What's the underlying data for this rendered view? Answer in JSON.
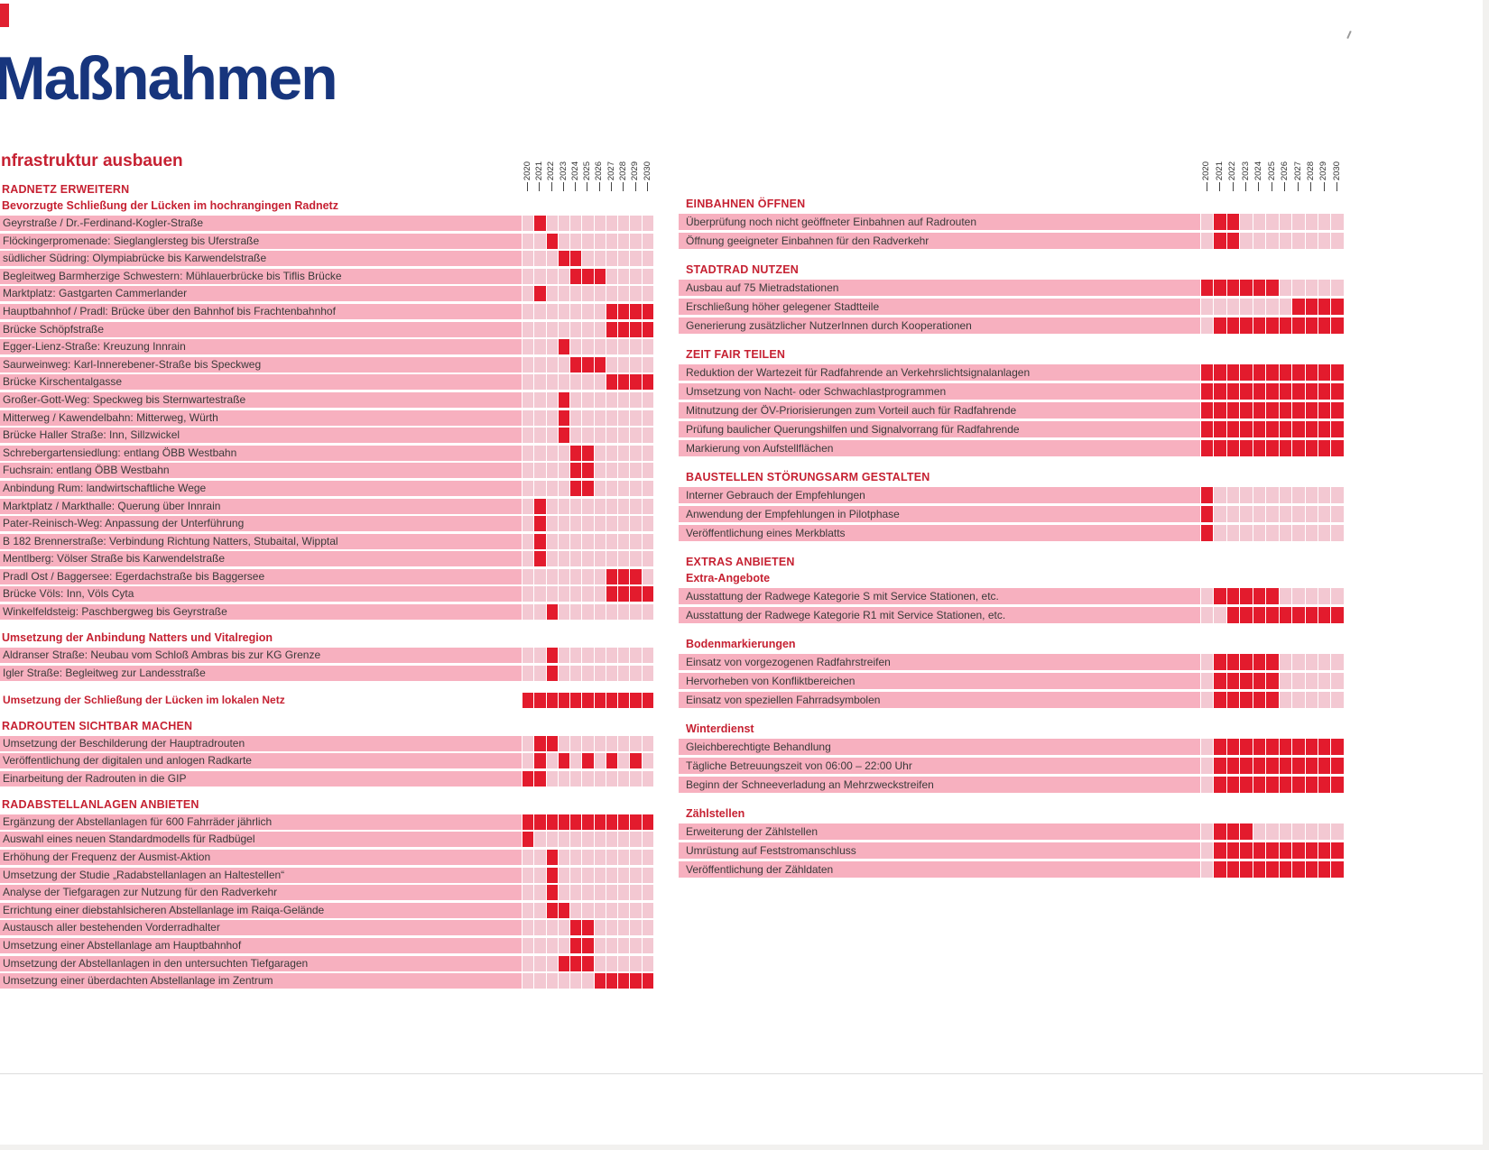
{
  "page": {
    "title": "Maßnahmen",
    "subtitle": "nfrastruktur ausbauen"
  },
  "years": [
    "2020",
    "2021",
    "2022",
    "2023",
    "2024",
    "2025",
    "2026",
    "2027",
    "2028",
    "2029",
    "2030"
  ],
  "colors": {
    "title_blue": "#17357d",
    "header_red": "#c62132",
    "cell_on": "#e31b2d",
    "cell_off": "#f3c8d2",
    "label_bar_pink": "#f7b0bf"
  },
  "left": {
    "sections": [
      {
        "caps": "RADNETZ ERWEITERN",
        "sub": "Bevorzugte Schließung der Lücken im hochrangingen Radnetz",
        "rows": [
          {
            "label": "Geyrstraße / Dr.-Ferdinand-Kogler-Straße",
            "filled": [
              "2021"
            ]
          },
          {
            "label": "Flöckingerpromenade: Sieglanglersteg bis Uferstraße",
            "filled": [
              "2022"
            ]
          },
          {
            "label": "südlicher Südring: Olympiabrücke bis Karwendelstraße",
            "filled": [
              "2023",
              "2024"
            ]
          },
          {
            "label": "Begleitweg Barmherzige Schwestern: Mühlauerbrücke bis Tiflis Brücke",
            "filled": [
              "2024",
              "2025",
              "2026"
            ]
          },
          {
            "label": "Marktplatz: Gastgarten Cammerlander",
            "filled": [
              "2021"
            ]
          },
          {
            "label": "Hauptbahnhof / Pradl: Brücke über den Bahnhof bis Frachtenbahnhof",
            "filled": [
              "2027",
              "2028",
              "2029",
              "2030"
            ]
          },
          {
            "label": "Brücke Schöpfstraße",
            "filled": [
              "2027",
              "2028",
              "2029",
              "2030"
            ]
          },
          {
            "label": "Egger-Lienz-Straße: Kreuzung Innrain",
            "filled": [
              "2023"
            ]
          },
          {
            "label": "Saurweinweg: Karl-Innerebener-Straße bis Speckweg",
            "filled": [
              "2024",
              "2025",
              "2026"
            ]
          },
          {
            "label": "Brücke Kirschentalgasse",
            "filled": [
              "2027",
              "2028",
              "2029",
              "2030"
            ]
          },
          {
            "label": "Großer-Gott-Weg: Speckweg bis Sternwartestraße",
            "filled": [
              "2023"
            ]
          },
          {
            "label": "Mitterweg / Kawendelbahn: Mitterweg, Würth",
            "filled": [
              "2023"
            ]
          },
          {
            "label": "Brücke Haller Straße: Inn, Sillzwickel",
            "filled": [
              "2023"
            ]
          },
          {
            "label": "Schrebergartensiedlung: entlang ÖBB Westbahn",
            "filled": [
              "2024",
              "2025"
            ]
          },
          {
            "label": "Fuchsrain: entlang ÖBB Westbahn",
            "filled": [
              "2024",
              "2025"
            ]
          },
          {
            "label": "Anbindung Rum: landwirtschaftliche Wege",
            "filled": [
              "2024",
              "2025"
            ]
          },
          {
            "label": "Marktplatz / Markthalle: Querung über Innrain",
            "filled": [
              "2021"
            ]
          },
          {
            "label": "Pater-Reinisch-Weg: Anpassung der Unterführung",
            "filled": [
              "2021"
            ]
          },
          {
            "label": "B 182 Brennerstraße: Verbindung Richtung Natters, Stubaital, Wipptal",
            "filled": [
              "2021"
            ]
          },
          {
            "label": "Mentlberg: Völser Straße bis Karwendelstraße",
            "filled": [
              "2021"
            ]
          },
          {
            "label": "Pradl Ost / Baggersee: Egerdachstraße bis Baggersee",
            "filled": [
              "2027",
              "2028",
              "2029"
            ]
          },
          {
            "label": "Brücke Völs: Inn, Völs Cyta",
            "filled": [
              "2027",
              "2028",
              "2029",
              "2030"
            ]
          },
          {
            "label": "Winkelfeldsteig: Paschbergweg bis Geyrstraße",
            "filled": [
              "2022"
            ]
          }
        ]
      },
      {
        "sub": "Umsetzung der Anbindung Natters und Vitalregion",
        "rows": [
          {
            "label": "Aldranser Straße: Neubau vom Schloß Ambras bis zur KG Grenze",
            "filled": [
              "2022"
            ]
          },
          {
            "label": "Igler Straße: Begleitweg zur Landesstraße",
            "filled": [
              "2022"
            ]
          }
        ]
      },
      {
        "rows": [
          {
            "label": "Umsetzung der Schließung der Lücken im lokalen Netz",
            "variant": "red-label",
            "filled": [
              "2020",
              "2021",
              "2022",
              "2023",
              "2024",
              "2025",
              "2026",
              "2027",
              "2028",
              "2029",
              "2030"
            ]
          }
        ]
      },
      {
        "caps": "RADROUTEN SICHTBAR MACHEN",
        "rows": [
          {
            "label": "Umsetzung der Beschilderung der Hauptradrouten",
            "filled": [
              "2021",
              "2022"
            ]
          },
          {
            "label": "Veröffentlichung der digitalen und anlogen Radkarte",
            "filled": [
              "2021",
              "2023",
              "2025",
              "2027",
              "2029"
            ]
          },
          {
            "label": "Einarbeitung der Radrouten in die GIP",
            "filled": [
              "2020",
              "2021"
            ]
          }
        ]
      },
      {
        "caps": "RADABSTELLANLAGEN ANBIETEN",
        "rows": [
          {
            "label": "Ergänzung der Abstellanlagen für 600 Fahrräder jährlich",
            "filled": [
              "2020",
              "2021",
              "2022",
              "2023",
              "2024",
              "2025",
              "2026",
              "2027",
              "2028",
              "2029",
              "2030"
            ]
          },
          {
            "label": "Auswahl eines neuen Standardmodells für Radbügel",
            "filled": [
              "2020"
            ]
          },
          {
            "label": "Erhöhung der Frequenz der Ausmist-Aktion",
            "filled": [
              "2022"
            ]
          },
          {
            "label": "Umsetzung der Studie „Radabstellanlagen an Haltestellen“",
            "filled": [
              "2022"
            ]
          },
          {
            "label": "Analyse der Tiefgaragen zur Nutzung für den Radverkehr",
            "filled": [
              "2022"
            ]
          },
          {
            "label": "Errichtung einer diebstahlsicheren Abstellanlage im Raiqa-Gelände",
            "filled": [
              "2022",
              "2023"
            ]
          },
          {
            "label": "Austausch aller bestehenden Vorderradhalter",
            "filled": [
              "2024",
              "2025"
            ]
          },
          {
            "label": "Umsetzung einer Abstellanlage am Hauptbahnhof",
            "filled": [
              "2024",
              "2025"
            ]
          },
          {
            "label": "Umsetzung der Abstellanlagen in den untersuchten Tiefgaragen",
            "filled": [
              "2023",
              "2024",
              "2025"
            ]
          },
          {
            "label": "Umsetzung einer überdachten Abstellanlage im Zentrum",
            "filled": [
              "2026",
              "2027",
              "2028",
              "2029",
              "2030"
            ]
          }
        ]
      }
    ]
  },
  "right": {
    "sections": [
      {
        "caps": "EINBAHNEN ÖFFNEN",
        "rows": [
          {
            "label": "Überprüfung noch nicht geöffneter Einbahnen auf Radrouten",
            "filled": [
              "2021",
              "2022"
            ]
          },
          {
            "label": "Öffnung geeigneter Einbahnen für den Radverkehr",
            "filled": [
              "2021",
              "2022"
            ]
          }
        ]
      },
      {
        "caps": "STADTRAD NUTZEN",
        "rows": [
          {
            "label": "Ausbau auf 75 Mietradstationen",
            "filled": [
              "2020",
              "2021",
              "2022",
              "2023",
              "2024",
              "2025"
            ]
          },
          {
            "label": "Erschließung höher gelegener Stadtteile",
            "filled": [
              "2027",
              "2028",
              "2029",
              "2030"
            ]
          },
          {
            "label": "Generierung zusätzlicher NutzerInnen durch Kooperationen",
            "filled": [
              "2021",
              "2022",
              "2023",
              "2024",
              "2025",
              "2026",
              "2027",
              "2028",
              "2029",
              "2030"
            ]
          }
        ]
      },
      {
        "caps": "ZEIT FAIR TEILEN",
        "rows": [
          {
            "label": "Reduktion der Wartezeit für Radfahrende an Verkehrslichtsignalanlagen",
            "filled": [
              "2020",
              "2021",
              "2022",
              "2023",
              "2024",
              "2025",
              "2026",
              "2027",
              "2028",
              "2029",
              "2030"
            ]
          },
          {
            "label": "Umsetzung von Nacht- oder Schwachlastprogrammen",
            "filled": [
              "2020",
              "2021",
              "2022",
              "2023",
              "2024",
              "2025",
              "2026",
              "2027",
              "2028",
              "2029",
              "2030"
            ]
          },
          {
            "label": "Mitnutzung der ÖV-Priorisierungen zum Vorteil auch für Radfahrende",
            "filled": [
              "2020",
              "2021",
              "2022",
              "2023",
              "2024",
              "2025",
              "2026",
              "2027",
              "2028",
              "2029",
              "2030"
            ]
          },
          {
            "label": "Prüfung baulicher Querungshilfen und Signalvorrang für Radfahrende",
            "filled": [
              "2020",
              "2021",
              "2022",
              "2023",
              "2024",
              "2025",
              "2026",
              "2027",
              "2028",
              "2029",
              "2030"
            ]
          },
          {
            "label": "Markierung von Aufstellflächen",
            "filled": [
              "2020",
              "2021",
              "2022",
              "2023",
              "2024",
              "2025",
              "2026",
              "2027",
              "2028",
              "2029",
              "2030"
            ]
          }
        ]
      },
      {
        "caps": "BAUSTELLEN STÖRUNGSARM GESTALTEN",
        "rows": [
          {
            "label": "Interner Gebrauch der Empfehlungen",
            "filled": [
              "2020"
            ]
          },
          {
            "label": "Anwendung der Empfehlungen in Pilotphase",
            "filled": [
              "2020"
            ]
          },
          {
            "label": "Veröffentlichung eines Merkblatts",
            "filled": [
              "2020"
            ]
          }
        ]
      },
      {
        "caps": "EXTRAS ANBIETEN",
        "sub": "Extra-Angebote",
        "rows": [
          {
            "label": "Ausstattung der Radwege Kategorie S mit Service Stationen, etc.",
            "filled": [
              "2021",
              "2022",
              "2023",
              "2024",
              "2025"
            ]
          },
          {
            "label": "Ausstattung der Radwege Kategorie R1 mit Service Stationen, etc.",
            "filled": [
              "2022",
              "2023",
              "2024",
              "2025",
              "2026",
              "2027",
              "2028",
              "2029",
              "2030"
            ]
          }
        ]
      },
      {
        "sub": "Bodenmarkierungen",
        "rows": [
          {
            "label": "Einsatz von vorgezogenen Radfahrstreifen",
            "filled": [
              "2021",
              "2022",
              "2023",
              "2024",
              "2025"
            ]
          },
          {
            "label": "Hervorheben von Konfliktbereichen",
            "filled": [
              "2021",
              "2022",
              "2023",
              "2024",
              "2025"
            ]
          },
          {
            "label": "Einsatz von speziellen Fahrradsymbolen",
            "filled": [
              "2021",
              "2022",
              "2023",
              "2024",
              "2025"
            ]
          }
        ]
      },
      {
        "sub": "Winterdienst",
        "rows": [
          {
            "label": "Gleichberechtigte Behandlung",
            "filled": [
              "2021",
              "2022",
              "2023",
              "2024",
              "2025",
              "2026",
              "2027",
              "2028",
              "2029",
              "2030"
            ]
          },
          {
            "label": "Tägliche Betreuungszeit von 06:00 – 22:00 Uhr",
            "filled": [
              "2021",
              "2022",
              "2023",
              "2024",
              "2025",
              "2026",
              "2027",
              "2028",
              "2029",
              "2030"
            ]
          },
          {
            "label": "Beginn der Schneeverladung an Mehrzweckstreifen",
            "filled": [
              "2021",
              "2022",
              "2023",
              "2024",
              "2025",
              "2026",
              "2027",
              "2028",
              "2029",
              "2030"
            ]
          }
        ]
      },
      {
        "sub": "Zählstellen",
        "rows": [
          {
            "label": "Erweiterung der Zählstellen",
            "filled": [
              "2021",
              "2022",
              "2023"
            ]
          },
          {
            "label": "Umrüstung auf Feststromanschluss",
            "filled": [
              "2021",
              "2022",
              "2023",
              "2024",
              "2025",
              "2026",
              "2027",
              "2028",
              "2029",
              "2030"
            ]
          },
          {
            "label": "Veröffentlichung der Zähldaten",
            "filled": [
              "2021",
              "2022",
              "2023",
              "2024",
              "2025",
              "2026",
              "2027",
              "2028",
              "2029",
              "2030"
            ]
          }
        ]
      }
    ]
  }
}
